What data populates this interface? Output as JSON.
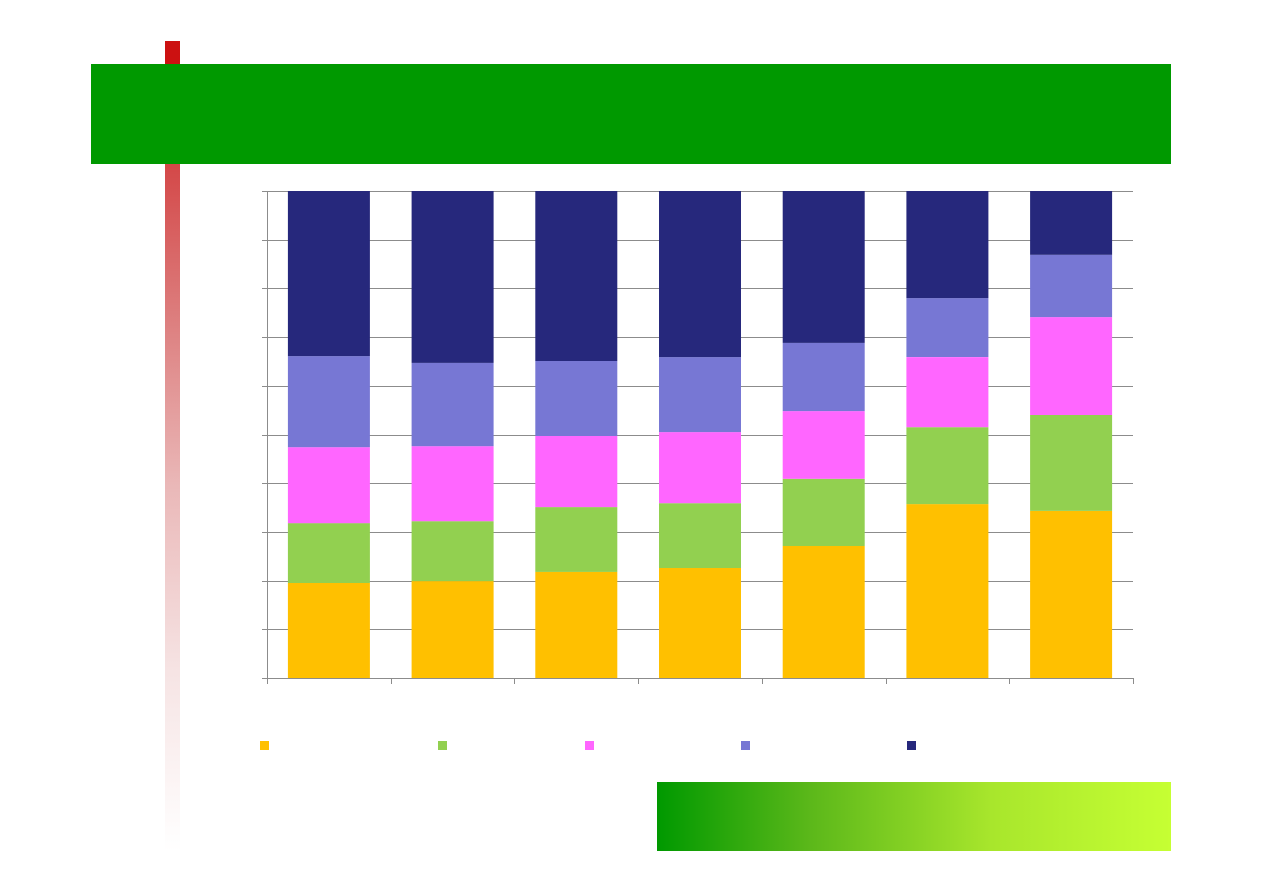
{
  "theme": {
    "header_color": "#009900",
    "accent_red": "#cc1111",
    "footer_gradient": [
      "#009900",
      "#c6ff33"
    ],
    "gridline_color": "#8c8c8c"
  },
  "chart_data": {
    "type": "bar",
    "stacked": true,
    "normalized": true,
    "ylim": [
      0,
      100
    ],
    "y_step": 10,
    "grid": true,
    "legend": "bottom",
    "series": [
      {
        "color": "#ffc000",
        "values": [
          19.5,
          19.9,
          21.8,
          22.6,
          27.1,
          35.7,
          34.3
        ]
      },
      {
        "color": "#92d050",
        "values": [
          12.3,
          12.3,
          13.3,
          13.3,
          13.8,
          15.8,
          19.7
        ]
      },
      {
        "color": "#ff66ff",
        "values": [
          15.6,
          15.4,
          14.6,
          14.6,
          13.9,
          14.4,
          20.1
        ]
      },
      {
        "color": "#7777d4",
        "values": [
          18.7,
          17.1,
          15.4,
          15.4,
          14.0,
          12.1,
          12.8
        ]
      },
      {
        "color": "#26287c",
        "values": [
          33.9,
          35.3,
          34.9,
          34.1,
          31.2,
          22.0,
          13.1
        ]
      }
    ]
  }
}
